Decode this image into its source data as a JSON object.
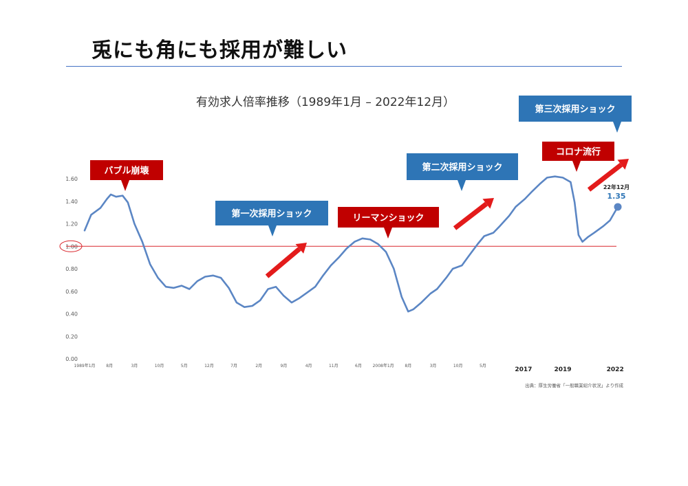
{
  "page": {
    "title": "兎にも角にも採用が難しい",
    "source": "出典：厚生労働省「一般職業紹介状況」より作成"
  },
  "colors": {
    "series": "#5b86c4",
    "callout_red": "#c00000",
    "callout_blue": "#2e75b6",
    "arrow": "#e31b1b",
    "reference_line": "#d9262c",
    "rule": "#4472c4"
  },
  "chart_data": {
    "type": "line",
    "title": "有効求人倍率推移（1989年1月 – 2022年12月）",
    "ylim": [
      0,
      1.6
    ],
    "y_ticks": [
      "0.00",
      "0.20",
      "0.40",
      "0.60",
      "0.80",
      "1.00",
      "1.20",
      "1.40",
      "1.60"
    ],
    "x_range": [
      "1989-01",
      "2022-12"
    ],
    "x_tick_labels": [
      {
        "label": "1989年1月",
        "date": "1989-01"
      },
      {
        "label": "8月",
        "date": "1990-08"
      },
      {
        "label": "3月",
        "date": "1992-03"
      },
      {
        "label": "10月",
        "date": "1993-10"
      },
      {
        "label": "5月",
        "date": "1995-05"
      },
      {
        "label": "12月",
        "date": "1996-12"
      },
      {
        "label": "7月",
        "date": "1998-07"
      },
      {
        "label": "2月",
        "date": "2000-02"
      },
      {
        "label": "9月",
        "date": "2001-09"
      },
      {
        "label": "4月",
        "date": "2003-04"
      },
      {
        "label": "11月",
        "date": "2004-11"
      },
      {
        "label": "6月",
        "date": "2006-06"
      },
      {
        "label": "2008年1月",
        "date": "2008-01"
      },
      {
        "label": "8月",
        "date": "2009-08"
      },
      {
        "label": "3月",
        "date": "2011-03"
      },
      {
        "label": "10月",
        "date": "2012-10"
      },
      {
        "label": "5月",
        "date": "2014-05"
      },
      {
        "label": "2017",
        "date": "2016-12",
        "strong": true
      },
      {
        "label": "2019",
        "date": "2019-06",
        "strong": true
      },
      {
        "label": "2022",
        "date": "2022-10",
        "strong": true
      }
    ],
    "series": [
      {
        "x": [
          "1989-01",
          "1989-06",
          "1990-01",
          "1990-06",
          "1990-09",
          "1991-01",
          "1991-06",
          "1991-10",
          "1992-03",
          "1992-09",
          "1993-03",
          "1993-09",
          "1994-03",
          "1994-09",
          "1995-03",
          "1995-09",
          "1996-03",
          "1996-09",
          "1997-03",
          "1997-09",
          "1998-03",
          "1998-09",
          "1999-03",
          "1999-09",
          "2000-03",
          "2000-09",
          "2001-03",
          "2001-09",
          "2002-03",
          "2002-09",
          "2003-03",
          "2003-09",
          "2004-03",
          "2004-09",
          "2005-03",
          "2005-09",
          "2006-03",
          "2006-09",
          "2007-03",
          "2007-09",
          "2008-03",
          "2008-09",
          "2009-03",
          "2009-08",
          "2009-12",
          "2010-06",
          "2011-01",
          "2011-06",
          "2012-01",
          "2012-06",
          "2013-01",
          "2013-06",
          "2014-01",
          "2014-06",
          "2015-01",
          "2015-06",
          "2016-01",
          "2016-06",
          "2017-01",
          "2017-06",
          "2018-01",
          "2018-06",
          "2018-12",
          "2019-06",
          "2019-12",
          "2020-03",
          "2020-06",
          "2020-09",
          "2021-01",
          "2021-06",
          "2022-01",
          "2022-06",
          "2022-12"
        ],
        "values": [
          1.14,
          1.28,
          1.34,
          1.42,
          1.46,
          1.44,
          1.45,
          1.39,
          1.2,
          1.04,
          0.84,
          0.72,
          0.64,
          0.63,
          0.65,
          0.62,
          0.69,
          0.73,
          0.74,
          0.72,
          0.63,
          0.5,
          0.46,
          0.47,
          0.52,
          0.62,
          0.64,
          0.56,
          0.5,
          0.54,
          0.59,
          0.64,
          0.74,
          0.83,
          0.9,
          0.98,
          1.04,
          1.07,
          1.06,
          1.02,
          0.95,
          0.8,
          0.55,
          0.42,
          0.44,
          0.5,
          0.58,
          0.62,
          0.72,
          0.8,
          0.83,
          0.91,
          1.02,
          1.09,
          1.12,
          1.18,
          1.27,
          1.35,
          1.42,
          1.48,
          1.56,
          1.61,
          1.62,
          1.61,
          1.57,
          1.39,
          1.1,
          1.04,
          1.08,
          1.12,
          1.18,
          1.23,
          1.35
        ]
      }
    ],
    "reference_line": {
      "value": 1.0
    },
    "last_point": {
      "label": "22年12月",
      "value": "1.35",
      "date": "2022-12"
    },
    "annotations": [
      {
        "text": "バブル崩壊",
        "style": "red",
        "pointer": "down"
      },
      {
        "text": "第一次採用ショック",
        "style": "blue",
        "pointer": "down"
      },
      {
        "text": "リーマンショック",
        "style": "red",
        "pointer": "down"
      },
      {
        "text": "第二次採用ショック",
        "style": "blue",
        "pointer": "down"
      },
      {
        "text": "コロナ流行",
        "style": "red",
        "pointer": "down"
      },
      {
        "text": "第三次採用ショック",
        "style": "blue",
        "pointer": "down"
      }
    ]
  }
}
